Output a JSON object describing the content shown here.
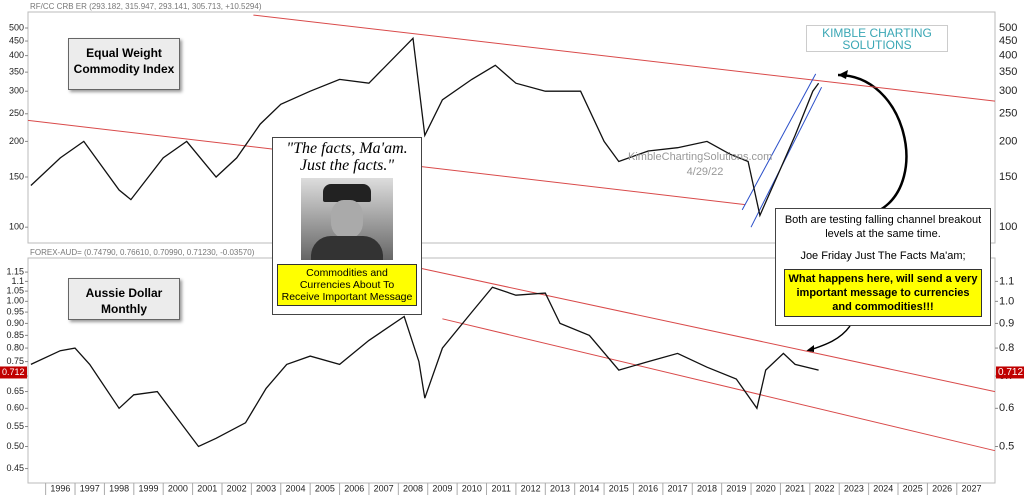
{
  "chart_data": [
    {
      "type": "line",
      "header": "RF/CC CRB ER (293.182, 315.947, 293.141, 305.713, +10.5294)",
      "title_lines": [
        "Equal Weight",
        "Commodity Index"
      ],
      "log_scale": true,
      "xlim": [
        1995.4,
        2028.3
      ],
      "ylim": [
        88,
        569
      ],
      "yticks": [
        100,
        150,
        200,
        250,
        300,
        350,
        400,
        450,
        500
      ],
      "series": [
        {
          "color": "#111111",
          "x": [
            1995.5,
            1996.5,
            1997.3,
            1998.5,
            1998.9,
            2000,
            2000.8,
            2001.8,
            2002.5,
            2003.3,
            2004,
            2005,
            2006,
            2007,
            2008.5,
            2008.9,
            2009.5,
            2010.5,
            2011.3,
            2012,
            2013,
            2014.2,
            2015,
            2015.5,
            2016.5,
            2017.5,
            2018.5,
            2019.3,
            2019.9,
            2020.3,
            2021,
            2021.5,
            2022.1,
            2022.3
          ],
          "values": [
            140,
            175,
            200,
            135,
            125,
            175,
            200,
            150,
            175,
            230,
            270,
            300,
            330,
            320,
            460,
            210,
            280,
            330,
            370,
            320,
            300,
            300,
            200,
            170,
            185,
            190,
            200,
            180,
            170,
            110,
            160,
            210,
            300,
            320
          ]
        }
      ],
      "channels": [
        {
          "color": "#d94a4a",
          "x": [
            2003.07,
            2028.3
          ],
          "values": [
            555,
            277
          ]
        },
        {
          "color": "#d94a4a",
          "x": [
            1995.4,
            2019.8
          ],
          "values": [
            237,
            120
          ]
        },
        {
          "color": "#2b4fc9",
          "x": [
            2019.7,
            2022.2
          ],
          "values": [
            115,
            345
          ]
        },
        {
          "color": "#2b4fc9",
          "x": [
            2020.0,
            2022.4
          ],
          "values": [
            100,
            310
          ]
        }
      ],
      "logo": [
        "KIMBLE CHARTING",
        "SOLUTIONS"
      ],
      "watermark": "KimbleChartingSolutions.com",
      "date": "4/29/22"
    },
    {
      "type": "line",
      "header": "FOREX-AUD= (0.74790, 0.76610, 0.70990, 0.71230, -0.03570)",
      "title_lines": [
        "Aussie Dollar",
        "Monthly"
      ],
      "log_scale": true,
      "xlim": [
        1995.4,
        2028.3
      ],
      "ylim": [
        0.42,
        1.23
      ],
      "y2lim": [
        0.42,
        1.23
      ],
      "yticks": [
        1.15,
        1.1,
        1.05,
        {
          "value": 1.0,
          "label": "1.00"
        },
        0.95,
        {
          "value": 0.9,
          "label": "0.90"
        },
        0.85,
        {
          "value": 0.8,
          "label": "0.80"
        },
        0.75,
        {
          "value": 0.7,
          "label": "0.70"
        },
        0.65,
        {
          "value": 0.6,
          "label": "0.60"
        },
        0.55,
        {
          "value": 0.5,
          "label": "0.50"
        },
        0.45
      ],
      "y2ticks": [
        1.1,
        {
          "value": 1.0,
          "label": "1.0"
        },
        0.9,
        0.8,
        0.7,
        0.6,
        0.5
      ],
      "xticks": [
        1996,
        1997,
        1998,
        1999,
        2000,
        2001,
        2002,
        2003,
        2004,
        2005,
        2006,
        2007,
        2008,
        2009,
        2010,
        2011,
        2012,
        2013,
        2014,
        2015,
        2016,
        2017,
        2018,
        2019,
        2020,
        2021,
        2022,
        2023,
        2024,
        2025,
        2026,
        2027
      ],
      "series": [
        {
          "color": "#111111",
          "x": [
            1995.5,
            1996.5,
            1997,
            1997.5,
            1998.5,
            1999,
            1999.8,
            2000.5,
            2001.2,
            2001.8,
            2002.8,
            2003.5,
            2004.2,
            2005,
            2006,
            2007,
            2008.2,
            2008.7,
            2008.9,
            2009.5,
            2010.5,
            2011.2,
            2012,
            2013,
            2013.5,
            2014.5,
            2015.5,
            2016.5,
            2017.5,
            2018.5,
            2019.5,
            2020.2,
            2020.5,
            2021.1,
            2021.5,
            2022.3
          ],
          "values": [
            0.74,
            0.79,
            0.8,
            0.74,
            0.6,
            0.64,
            0.65,
            0.57,
            0.5,
            0.52,
            0.56,
            0.66,
            0.74,
            0.77,
            0.74,
            0.83,
            0.93,
            0.75,
            0.63,
            0.8,
            0.95,
            1.07,
            1.03,
            1.04,
            0.9,
            0.85,
            0.72,
            0.75,
            0.78,
            0.73,
            0.69,
            0.6,
            0.72,
            0.78,
            0.74,
            0.72
          ]
        }
      ],
      "channels": [
        {
          "color": "#d94a4a",
          "x": [
            2007.8,
            2028.3
          ],
          "values": [
            1.205,
            0.65
          ]
        },
        {
          "color": "#d94a4a",
          "x": [
            2009.5,
            2028.3
          ],
          "values": [
            0.92,
            0.49
          ]
        }
      ],
      "last_value": 0.712
    }
  ],
  "annotations": {
    "quote": [
      "\"The facts, Ma'am.",
      "Just the facts.\""
    ],
    "quote_caption": "Commodities and Currencies About To Receive Important Message",
    "note_1": "Both are testing falling channel breakout levels at the same time.",
    "note_2": "Joe Friday Just The Facts Ma'am;",
    "note_3": "What happens here, will send a very important message to currencies and commodities!!!"
  }
}
